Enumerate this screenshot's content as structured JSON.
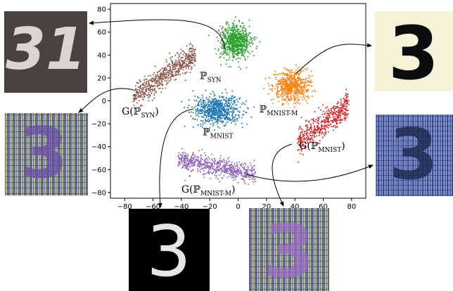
{
  "chart_data": {
    "type": "scatter",
    "xlim": [
      -90,
      90
    ],
    "ylim": [
      -85,
      85
    ],
    "xticks": [
      -80,
      -60,
      -40,
      -20,
      0,
      20,
      40,
      60,
      80
    ],
    "yticks": [
      80,
      60,
      40,
      20,
      0,
      -20,
      -40,
      -60,
      -80
    ],
    "grid": false,
    "series": [
      {
        "name": "P_SYN",
        "color": "#2ca02c",
        "center": [
          -2,
          52
        ],
        "spread": [
          12,
          16
        ],
        "count": 700,
        "label": {
          "main": "ℙ",
          "sub": "SYN",
          "at": [
            -27,
            19
          ]
        }
      },
      {
        "name": "G(P_SYN)",
        "color": "#8c564b",
        "center": [
          -52,
          22
        ],
        "spread": [
          22,
          20
        ],
        "count": 600,
        "label": {
          "main": "G(ℙ",
          "sub": "SYN",
          "tail": ")",
          "at": [
            -82,
            -12
          ]
        }
      },
      {
        "name": "P_MNIST-M",
        "color": "#ff7f0e",
        "center": [
          38,
          13
        ],
        "spread": [
          15,
          14
        ],
        "count": 600,
        "label": {
          "main": "ℙ",
          "sub": "MNIST-M",
          "at": [
            15,
            -10
          ]
        }
      },
      {
        "name": "P_MNIST",
        "color": "#1f77b4",
        "center": [
          -15,
          -8
        ],
        "spread": [
          18,
          14
        ],
        "count": 700,
        "label": {
          "main": "ℙ",
          "sub": "MNIST",
          "at": [
            -25,
            -30
          ]
        }
      },
      {
        "name": "G(P_MNIST)",
        "color": "#d62728",
        "center": [
          60,
          -20
        ],
        "spread": [
          20,
          20
        ],
        "count": 500,
        "label": {
          "main": "G(ℙ",
          "sub": "MNIST",
          "tail": ")",
          "at": [
            43,
            -42
          ]
        }
      },
      {
        "name": "G(P_MNIST-M)",
        "color": "#9467bd",
        "center": [
          -15,
          -58
        ],
        "spread": [
          34,
          10
        ],
        "count": 650,
        "label": {
          "main": "G(ℙ",
          "sub": "MNIST-M",
          "tail": ")",
          "at": [
            -40,
            -80
          ]
        }
      }
    ]
  },
  "thumbnails": [
    {
      "name": "syn-digit-image",
      "glyph": "31",
      "style": "syn"
    },
    {
      "name": "mnistm-digit-image",
      "glyph": "3",
      "style": "mnistm"
    },
    {
      "name": "g-syn-digit-image",
      "glyph": "3",
      "style": "gen"
    },
    {
      "name": "g-mnistm-digit-image",
      "glyph": "3",
      "style": "gen2"
    },
    {
      "name": "mnist-digit-image",
      "glyph": "3",
      "style": "mnist"
    },
    {
      "name": "g-mnist-digit-image",
      "glyph": "3",
      "style": "gen"
    }
  ]
}
